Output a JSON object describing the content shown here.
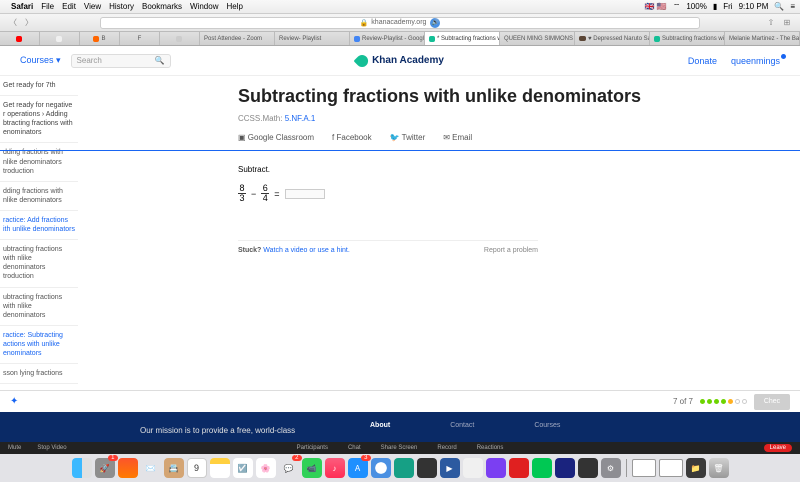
{
  "menubar": {
    "app": "Safari",
    "items": [
      "File",
      "Edit",
      "View",
      "History",
      "Bookmarks",
      "Window",
      "Help"
    ],
    "right": {
      "flags": "🇬🇧 🇺🇸",
      "battery": "100%",
      "day": "Fri",
      "time": "9:10 PM"
    }
  },
  "url": "khanacademy.org",
  "tabs": [
    {
      "label": "Post Attendee - Zoom",
      "fav": ""
    },
    {
      "label": "Review- Playlist",
      "fav": ""
    },
    {
      "label": "Review-Playlist - Google Docs",
      "fav": "fav-gd"
    },
    {
      "label": "* Subtracting fractions with unlik…",
      "fav": "fav-ka",
      "active": true
    },
    {
      "label": "QUEEN MING SIMMONS - 23-7…",
      "fav": ""
    },
    {
      "label": "♥ Depressed Naruto Sasunaru…",
      "fav": ""
    },
    {
      "label": "Subtracting fractions with unlike…",
      "fav": "fav-ka"
    },
    {
      "label": "Melanie Martinez - The Ba",
      "fav": ""
    }
  ],
  "khan": {
    "courses": "Courses ▾",
    "search_placeholder": "Search",
    "brand": "Khan Academy",
    "donate": "Donate",
    "user": "queenmings"
  },
  "sidebar": [
    {
      "text": "Get ready for 7th",
      "cls": "crumb"
    },
    {
      "text": "Get ready for negative r operations › Adding btracting fractions with enominators",
      "cls": "crumb"
    },
    {
      "text": "dding fractions with nlike denominators troduction",
      "cls": ""
    },
    {
      "text": "dding fractions with nlike denominators",
      "cls": ""
    },
    {
      "text": "ractice: Add fractions ith unlike denominators",
      "cls": "link"
    },
    {
      "text": "ubtracting fractions with nlike denominators troduction",
      "cls": ""
    },
    {
      "text": "ubtracting fractions with nlike denominators",
      "cls": ""
    },
    {
      "text": "ractice: Subtracting actions with unlike enominators",
      "cls": "link"
    },
    {
      "text": "sson lying fractions",
      "cls": ""
    }
  ],
  "page": {
    "title": "Subtracting fractions with unlike denominators",
    "ccss_label": "CCSS.Math:",
    "ccss_link": "5.NF.A.1",
    "share": {
      "gc": "Google Classroom",
      "fb": "Facebook",
      "tw": "Twitter",
      "em": "Email"
    },
    "instruction": "Subtract.",
    "frac1": {
      "n": "8",
      "d": "3"
    },
    "minus": "−",
    "frac2": {
      "n": "6",
      "d": "4"
    },
    "equals": "=",
    "stuck_label": "Stuck?",
    "hint_link": "Watch a video or use a hint.",
    "report": "Report a problem",
    "progress": "7 of 7",
    "check": "Chec"
  },
  "footer": {
    "mission": "Our mission is to provide a free, world-class",
    "cols": [
      "About",
      "Contact",
      "Courses"
    ]
  },
  "zoom": {
    "left": [
      "Mute",
      "Stop Video"
    ],
    "mid": [
      "Participants",
      "Chat",
      "Share Screen",
      "Record",
      "Reactions"
    ],
    "leave": "Leave"
  },
  "dock": {
    "calendar_num": "9",
    "badges": {
      "messages": "2",
      "appstore": "3",
      "launchpad": "1"
    }
  }
}
